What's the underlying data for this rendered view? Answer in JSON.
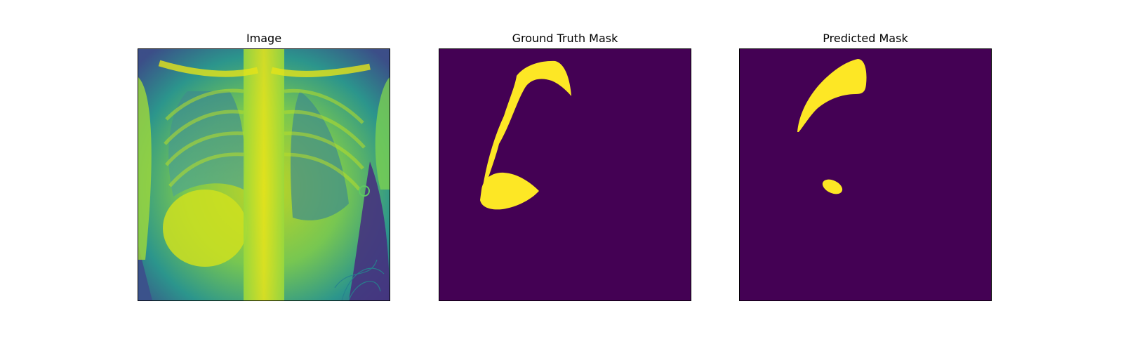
{
  "panels": [
    {
      "title": "Image"
    },
    {
      "title": "Ground Truth Mask"
    },
    {
      "title": "Predicted Mask"
    }
  ],
  "colors": {
    "mask_background": "#440154",
    "mask_foreground": "#fde725",
    "xray_dark": "#440154",
    "xray_mid": "#21918c",
    "xray_bright": "#dde318"
  }
}
